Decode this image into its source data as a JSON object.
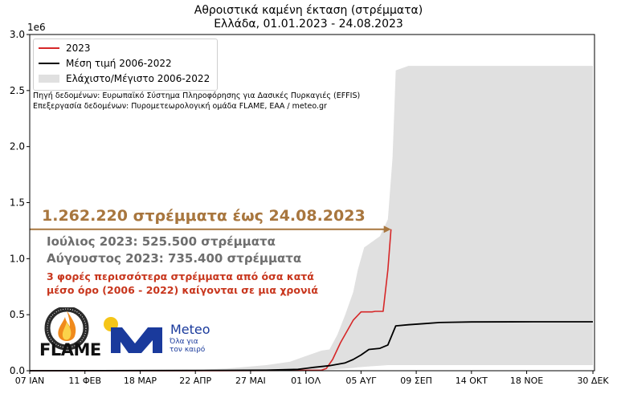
{
  "chart_data": {
    "type": "area",
    "title": "Αθροιστικά καμένη έκταση (στρέμματα)",
    "subtitle": "Ελλάδα, 01.01.2023 - 24.08.2023",
    "y_scale_label": "1e6",
    "ylim": [
      0,
      3.0
    ],
    "xlim": [
      0,
      358
    ],
    "y_ticks": [
      "0.0",
      "0.5",
      "1.0",
      "1.5",
      "2.0",
      "2.5",
      "3.0"
    ],
    "x_ticks": [
      "07 ΙΑΝ",
      "11 ΦΕΒ",
      "18 ΜΑΡ",
      "22 ΑΠΡ",
      "27 ΜΑΙ",
      "01 ΙΟΛ",
      "05 ΑΥΓ",
      "09 ΣΕΠ",
      "14 ΟΚΤ",
      "18 ΝΟΕ",
      "30 ΔΕΚ"
    ],
    "x_tick_days": [
      0,
      35,
      70,
      105,
      140,
      175,
      210,
      245,
      280,
      315,
      357
    ],
    "grid": false,
    "legend_position": "top-left",
    "series": [
      {
        "name": "2023",
        "color": "#d62728",
        "x": [
          0,
          120,
          160,
          185,
          188,
          192,
          197,
          205,
          210,
          217,
          219,
          224,
          227,
          229
        ],
        "y": [
          0,
          0,
          0.002,
          0.005,
          0.02,
          0.1,
          0.25,
          0.45,
          0.525,
          0.525,
          0.53,
          0.53,
          0.9,
          1.262
        ]
      },
      {
        "name": "Μέση τιμή 2006-2022",
        "color": "#000000",
        "x": [
          0,
          100,
          150,
          170,
          180,
          190,
          200,
          205,
          210,
          215,
          222,
          227,
          232,
          240,
          250,
          260,
          280,
          320,
          357
        ],
        "y": [
          0,
          0.002,
          0.005,
          0.012,
          0.03,
          0.045,
          0.07,
          0.1,
          0.14,
          0.19,
          0.2,
          0.23,
          0.4,
          0.41,
          0.42,
          0.43,
          0.435,
          0.437,
          0.437
        ]
      }
    ],
    "band": {
      "name": "Ελάχιστο/Μέγιστο 2006-2022",
      "color": "#e0e0e0",
      "x": [
        0,
        100,
        125,
        150,
        165,
        175,
        185,
        190,
        195,
        200,
        205,
        208,
        212,
        217,
        222,
        227,
        230,
        232,
        240,
        260,
        300,
        357
      ],
      "upper": [
        0,
        0.005,
        0.02,
        0.05,
        0.08,
        0.13,
        0.18,
        0.19,
        0.32,
        0.5,
        0.7,
        0.9,
        1.1,
        1.15,
        1.2,
        1.35,
        1.9,
        2.68,
        2.72,
        2.72,
        2.72,
        2.72
      ],
      "lower": [
        0,
        0,
        0,
        0,
        0,
        0.002,
        0.005,
        0.01,
        0.015,
        0.02,
        0.025,
        0.03,
        0.035,
        0.04,
        0.045,
        0.05,
        0.05,
        0.05,
        0.05,
        0.05,
        0.05,
        0.05
      ]
    },
    "annotation_value": 1.262,
    "annotation_day": 229
  },
  "annotations": {
    "total": "1.262.220 στρέμματα έως 24.08.2023",
    "july": "Ιούλιος 2023: 525.500 στρέμματα",
    "august": "Αύγουστος 2023: 735.400 στρέμματα",
    "comparison_line1": "3 φορές περισσότερα στρέμματα από όσα κατά",
    "comparison_line2": "μέσο όρο (2006 - 2022) καίγονται σε μια χρονιά"
  },
  "sources": {
    "line1": "Πηγή δεδομένων: Ευρωπαϊκό Σύστημα Πληροφόρησης για Δασικές Πυρκαγιές (EFFIS)",
    "line2": "Επεξεργασία δεδομένων: Πυρομετεωρολογική ομάδα FLAME, ΕΑΑ / meteo.gr"
  },
  "logos": {
    "flame_name": "FLAME",
    "flame_ring_text": "EXTREME FIRE WEATHER & FIRE BEHAVIOUR",
    "meteo_name": "Meteo",
    "meteo_tagline_1": "Όλα για",
    "meteo_tagline_2": "τον καιρό"
  },
  "colors": {
    "annotation_total": "#a8763e",
    "annotation_months": "#6e6e6e",
    "annotation_comparison": "#c8361d",
    "meteo_blue": "#1a3a9c",
    "sun_yellow": "#f5c518"
  }
}
